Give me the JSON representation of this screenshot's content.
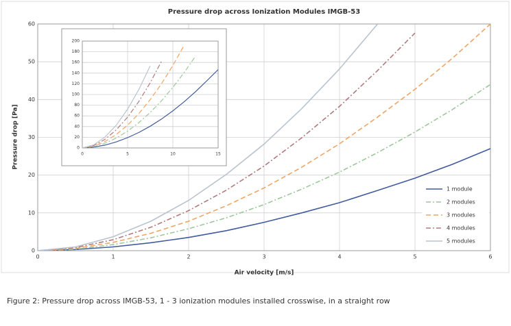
{
  "chart_data": [
    {
      "type": "line",
      "title": "Pressure drop across Ionization Modules IMGB-53",
      "x_label": "Air velocity [m/s]",
      "y_label": "Pressure drop [Pa]",
      "x": [
        0,
        0.5,
        1,
        1.5,
        2,
        2.5,
        3,
        3.5,
        4,
        4.5,
        5,
        5.5,
        6
      ],
      "xlim": [
        0,
        6
      ],
      "xticks": [
        0,
        1,
        2,
        3,
        4,
        5,
        6
      ],
      "ylim": [
        0,
        60
      ],
      "yticks": [
        0,
        10,
        20,
        30,
        40,
        50,
        60
      ],
      "grid": true,
      "legend": "lower-right",
      "series": [
        {
          "name": "1 module",
          "color": "#3f5a9e",
          "line_style": "solid",
          "values": [
            0,
            0.3,
            1,
            2.1,
            3.5,
            5.3,
            7.5,
            10,
            12.7,
            15.9,
            19.2,
            22.9,
            27
          ]
        },
        {
          "name": "2 modules",
          "color": "#9cc79a",
          "line_style": "dash-dot",
          "values": [
            0,
            0.4,
            1.6,
            3.4,
            5.8,
            8.7,
            12.2,
            16.3,
            20.8,
            25.9,
            31.4,
            37.4,
            44
          ]
        },
        {
          "name": "3 modules",
          "color": "#f0a463",
          "line_style": "dash",
          "values": [
            0,
            0.6,
            2.2,
            4.6,
            7.8,
            11.9,
            16.6,
            22.1,
            28.3,
            35.3,
            42.7,
            51,
            60
          ]
        },
        {
          "name": "4 modules",
          "color": "#b07a7a",
          "line_style": "dash-dot",
          "values": [
            0,
            0.8,
            2.9,
            6.2,
            10.6,
            16,
            22.4,
            29.9,
            38.2,
            47.6,
            57.6,
            null,
            null
          ]
        },
        {
          "name": "5 modules",
          "color": "#b9c3cf",
          "line_style": "solid",
          "values": [
            0,
            1,
            3.7,
            7.8,
            13.3,
            20.2,
            28.2,
            37.6,
            48.1,
            59.9,
            null,
            null,
            null
          ]
        }
      ]
    },
    {
      "type": "line",
      "x": [
        0,
        1.25,
        2.5,
        3.75,
        5,
        6.25,
        7.5,
        8.75,
        10,
        11.25,
        12.5,
        13.75,
        15
      ],
      "xlim": [
        0,
        15
      ],
      "xticks": [
        0,
        5,
        10,
        15
      ],
      "ylim": [
        0,
        200
      ],
      "yticks": [
        0,
        20,
        40,
        60,
        80,
        100,
        120,
        140,
        160,
        180,
        200
      ],
      "grid": true,
      "series": [
        {
          "color": "#3f5a9e",
          "line_style": "solid",
          "values": [
            0,
            1.5,
            5.3,
            11.3,
            19.2,
            29,
            40.7,
            54.1,
            69.4,
            86.4,
            105.2,
            125.6,
            146.6
          ]
        },
        {
          "color": "#9cc79a",
          "line_style": "dash-dot",
          "values": [
            0,
            2.4,
            8.7,
            18.4,
            31.4,
            47.4,
            66.4,
            88.3,
            113.3,
            141.1,
            171.7,
            null,
            null
          ]
        },
        {
          "color": "#f0a463",
          "line_style": "dash",
          "values": [
            0,
            3.3,
            11.9,
            25.1,
            42.7,
            64.5,
            90.5,
            120.3,
            154.3,
            192.3,
            null,
            null,
            null
          ]
        },
        {
          "color": "#b07a7a",
          "line_style": "dash-dot",
          "values": [
            0,
            4.4,
            16,
            33.8,
            57.6,
            87,
            122,
            162.3,
            null,
            null,
            null,
            null,
            null
          ]
        },
        {
          "color": "#b9c3cf",
          "line_style": "solid",
          "values": [
            0,
            5.6,
            20.2,
            42.6,
            72.5,
            109.5,
            153.6,
            null,
            null,
            null,
            null,
            null,
            null
          ]
        }
      ]
    }
  ],
  "caption": "Figure 2: Pressure drop across IMGB-53, 1 - 3 ionization modules installed crosswise, in a straight row"
}
